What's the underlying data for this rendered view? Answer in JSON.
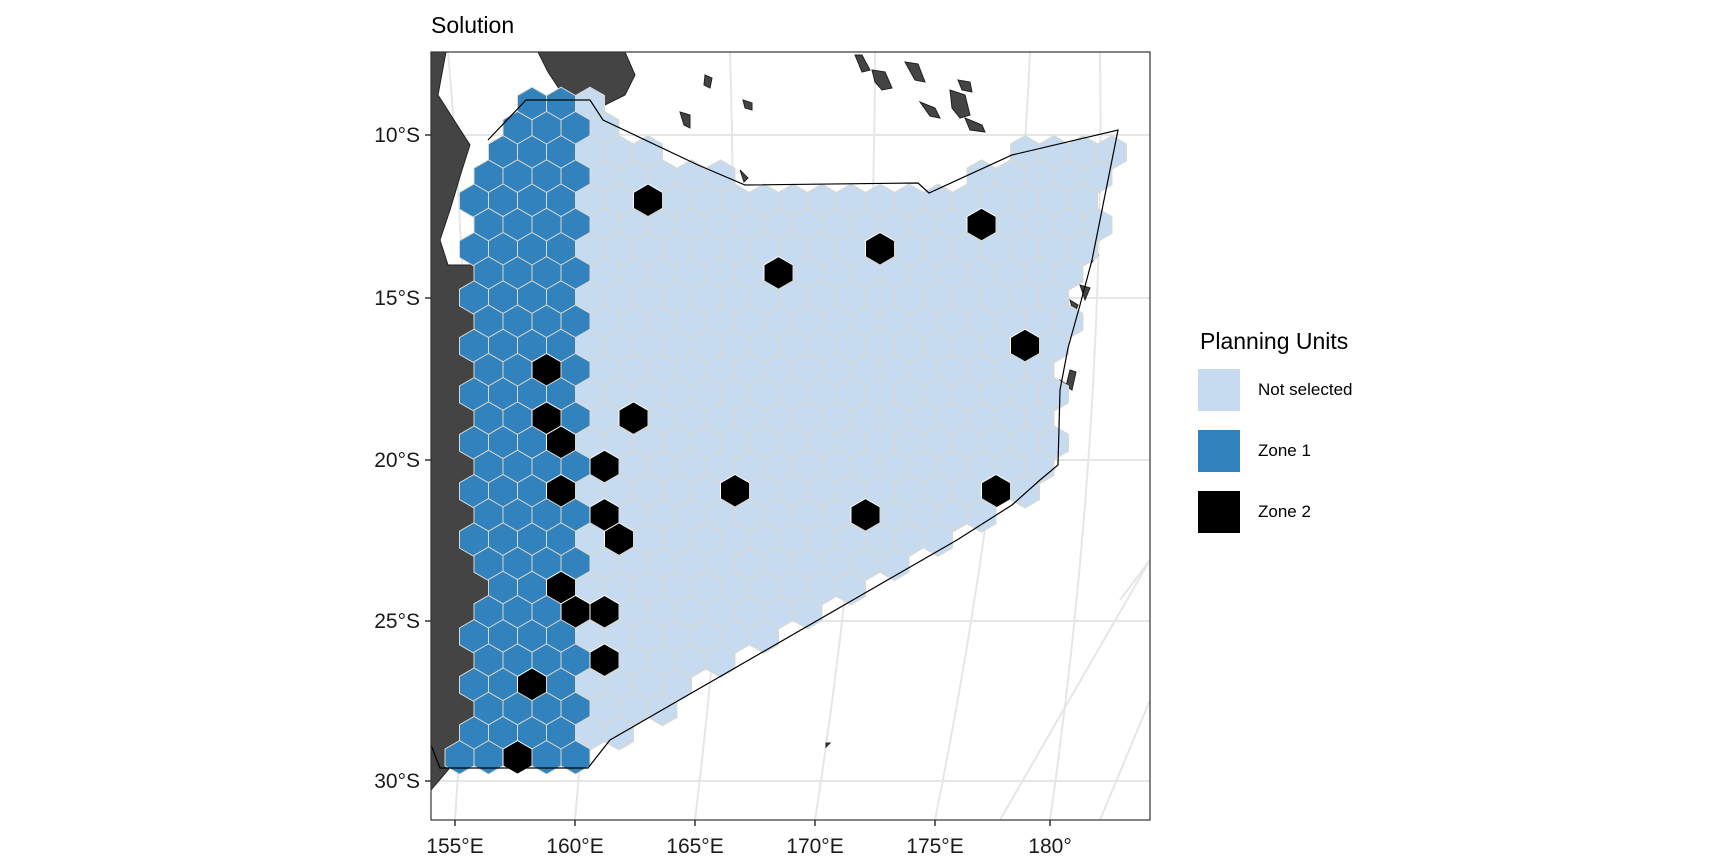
{
  "title": "Solution",
  "legend": {
    "title": "Planning Units",
    "items": [
      {
        "label": "Not selected",
        "color": "#c6dbef"
      },
      {
        "label": "Zone 1",
        "color": "#3182bd"
      },
      {
        "label": "Zone 2",
        "color": "#000000"
      }
    ]
  },
  "axes": {
    "x_ticks": [
      "155°E",
      "160°E",
      "165°E",
      "170°E",
      "175°E",
      "180°"
    ],
    "y_ticks": [
      "10°S",
      "15°S",
      "20°S",
      "25°S",
      "30°S"
    ]
  },
  "colors": {
    "land": "#444444",
    "grid": "#e6e6e6",
    "cell_border": "#dddddd",
    "boundary": "#000000"
  }
}
